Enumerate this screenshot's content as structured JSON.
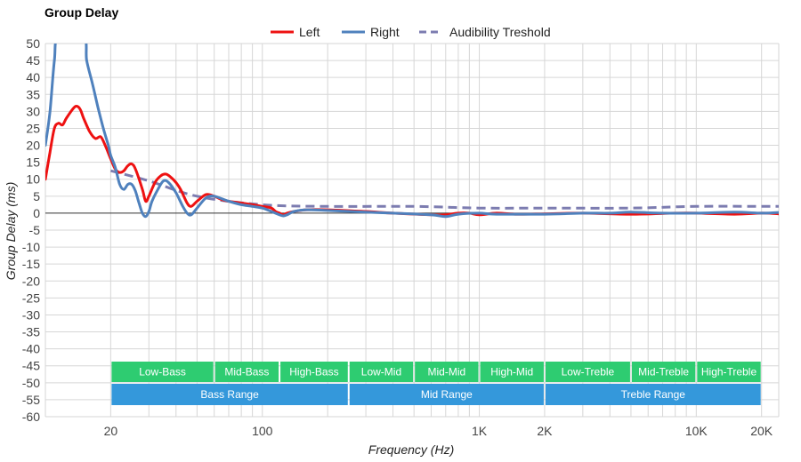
{
  "chart_data": {
    "type": "line",
    "title": "Group Delay",
    "xlabel": "Frequency (Hz)",
    "ylabel": "Group Delay (ms)",
    "x_scale": "log",
    "xlim": [
      10,
      24000
    ],
    "ylim": [
      -60,
      50
    ],
    "y_ticks": [
      50,
      45,
      40,
      35,
      30,
      25,
      20,
      15,
      10,
      5,
      0,
      -5,
      -10,
      -15,
      -20,
      -25,
      -30,
      -35,
      -40,
      -45,
      -50,
      -55,
      -60
    ],
    "x_tick_labels": [
      {
        "value": 20,
        "label": "20"
      },
      {
        "value": 100,
        "label": "100"
      },
      {
        "value": 1000,
        "label": "1K"
      },
      {
        "value": 2000,
        "label": "2K"
      },
      {
        "value": 10000,
        "label": "10K"
      },
      {
        "value": 20000,
        "label": "20K"
      }
    ],
    "grid": true,
    "legend_position": "top-center",
    "series": [
      {
        "name": "Left",
        "color": "#ee1111",
        "style": "solid",
        "points": [
          [
            10,
            10
          ],
          [
            10.5,
            18
          ],
          [
            11,
            25
          ],
          [
            11.5,
            26.5
          ],
          [
            12,
            26
          ],
          [
            12.5,
            28
          ],
          [
            13.5,
            31
          ],
          [
            14,
            31.5
          ],
          [
            14.5,
            30.5
          ],
          [
            15,
            28
          ],
          [
            16,
            24
          ],
          [
            17,
            22
          ],
          [
            18,
            22.5
          ],
          [
            19,
            19.5
          ],
          [
            20,
            16
          ],
          [
            21,
            13
          ],
          [
            22,
            12
          ],
          [
            23,
            12.5
          ],
          [
            24,
            14
          ],
          [
            25,
            14.5
          ],
          [
            26,
            13
          ],
          [
            28,
            7
          ],
          [
            29,
            3.5
          ],
          [
            30,
            5
          ],
          [
            32,
            9
          ],
          [
            34,
            11
          ],
          [
            36,
            11.5
          ],
          [
            38,
            10.5
          ],
          [
            40,
            9
          ],
          [
            42,
            7
          ],
          [
            45,
            3
          ],
          [
            47,
            2
          ],
          [
            50,
            3.5
          ],
          [
            55,
            5.5
          ],
          [
            60,
            5
          ],
          [
            65,
            4
          ],
          [
            70,
            3.5
          ],
          [
            80,
            3
          ],
          [
            90,
            2.5
          ],
          [
            100,
            2
          ],
          [
            110,
            1.5
          ],
          [
            115,
            0.5
          ],
          [
            120,
            0
          ],
          [
            125,
            -0.5
          ],
          [
            130,
            0
          ],
          [
            140,
            0.5
          ],
          [
            160,
            1
          ],
          [
            200,
            1
          ],
          [
            300,
            0.5
          ],
          [
            400,
            0
          ],
          [
            600,
            -0.5
          ],
          [
            700,
            -0.5
          ],
          [
            800,
            0
          ],
          [
            900,
            0
          ],
          [
            1000,
            -0.5
          ],
          [
            1200,
            0
          ],
          [
            1500,
            -0.3
          ],
          [
            2000,
            -0.2
          ],
          [
            3000,
            0
          ],
          [
            5000,
            -0.3
          ],
          [
            8000,
            0
          ],
          [
            10000,
            0
          ],
          [
            15000,
            -0.3
          ],
          [
            20000,
            0
          ],
          [
            24000,
            -0.2
          ]
        ]
      },
      {
        "name": "Right",
        "color": "#4f81bd",
        "style": "solid",
        "points": [
          [
            10,
            20
          ],
          [
            10.5,
            30
          ],
          [
            11,
            45
          ],
          [
            11.5,
            52
          ],
          [
            15,
            52
          ],
          [
            15.5,
            45
          ],
          [
            16.5,
            38
          ],
          [
            17.5,
            31
          ],
          [
            18.5,
            25
          ],
          [
            19.5,
            20
          ],
          [
            20,
            17
          ],
          [
            21,
            13.5
          ],
          [
            22,
            8.5
          ],
          [
            23,
            7
          ],
          [
            24,
            8.5
          ],
          [
            25,
            8.5
          ],
          [
            26,
            6.5
          ],
          [
            27,
            3
          ],
          [
            28,
            0
          ],
          [
            29,
            -1
          ],
          [
            30,
            0.5
          ],
          [
            31,
            3.5
          ],
          [
            33,
            7
          ],
          [
            35,
            9.5
          ],
          [
            37,
            9
          ],
          [
            40,
            6
          ],
          [
            43,
            2
          ],
          [
            45,
            0
          ],
          [
            47,
            -0.5
          ],
          [
            50,
            1.5
          ],
          [
            55,
            4.5
          ],
          [
            60,
            5
          ],
          [
            70,
            3.5
          ],
          [
            80,
            2.5
          ],
          [
            90,
            2
          ],
          [
            100,
            1.5
          ],
          [
            110,
            0.5
          ],
          [
            120,
            -0.5
          ],
          [
            125,
            -0.8
          ],
          [
            130,
            -0.5
          ],
          [
            140,
            0.5
          ],
          [
            160,
            1
          ],
          [
            200,
            0.8
          ],
          [
            300,
            0.3
          ],
          [
            400,
            0
          ],
          [
            600,
            -0.5
          ],
          [
            700,
            -1
          ],
          [
            800,
            -0.3
          ],
          [
            1000,
            0
          ],
          [
            1200,
            -0.3
          ],
          [
            2000,
            -0.3
          ],
          [
            3000,
            0
          ],
          [
            4000,
            0
          ],
          [
            5000,
            0.3
          ],
          [
            7000,
            0
          ],
          [
            10000,
            0
          ],
          [
            15000,
            0.3
          ],
          [
            20000,
            0
          ],
          [
            24000,
            0.2
          ]
        ]
      },
      {
        "name": "Audibility Treshold",
        "color": "#7c7cb0",
        "style": "dashed",
        "points": [
          [
            20,
            12.5
          ],
          [
            30,
            9.5
          ],
          [
            50,
            5
          ],
          [
            100,
            2.5
          ],
          [
            200,
            2
          ],
          [
            500,
            2
          ],
          [
            1000,
            1.5
          ],
          [
            2000,
            1.5
          ],
          [
            5000,
            1.5
          ],
          [
            10000,
            2
          ],
          [
            24000,
            2
          ]
        ]
      }
    ],
    "bands": [
      {
        "label": "Low-Bass",
        "from": 20,
        "to": 60,
        "row": 1,
        "color": "#2ecc71"
      },
      {
        "label": "Mid-Bass",
        "from": 60,
        "to": 120,
        "row": 1,
        "color": "#2ecc71"
      },
      {
        "label": "High-Bass",
        "from": 120,
        "to": 250,
        "row": 1,
        "color": "#2ecc71"
      },
      {
        "label": "Low-Mid",
        "from": 250,
        "to": 500,
        "row": 1,
        "color": "#2ecc71"
      },
      {
        "label": "Mid-Mid",
        "from": 500,
        "to": 1000,
        "row": 1,
        "color": "#2ecc71"
      },
      {
        "label": "High-Mid",
        "from": 1000,
        "to": 2000,
        "row": 1,
        "color": "#2ecc71"
      },
      {
        "label": "Low-Treble",
        "from": 2000,
        "to": 5000,
        "row": 1,
        "color": "#2ecc71"
      },
      {
        "label": "Mid-Treble",
        "from": 5000,
        "to": 10000,
        "row": 1,
        "color": "#2ecc71"
      },
      {
        "label": "High-Treble",
        "from": 10000,
        "to": 20000,
        "row": 1,
        "color": "#2ecc71"
      },
      {
        "label": "Bass Range",
        "from": 20,
        "to": 250,
        "row": 2,
        "color": "#3498db"
      },
      {
        "label": "Mid Range",
        "from": 250,
        "to": 2000,
        "row": 2,
        "color": "#3498db"
      },
      {
        "label": "Treble Range",
        "from": 2000,
        "to": 20000,
        "row": 2,
        "color": "#3498db"
      }
    ]
  }
}
